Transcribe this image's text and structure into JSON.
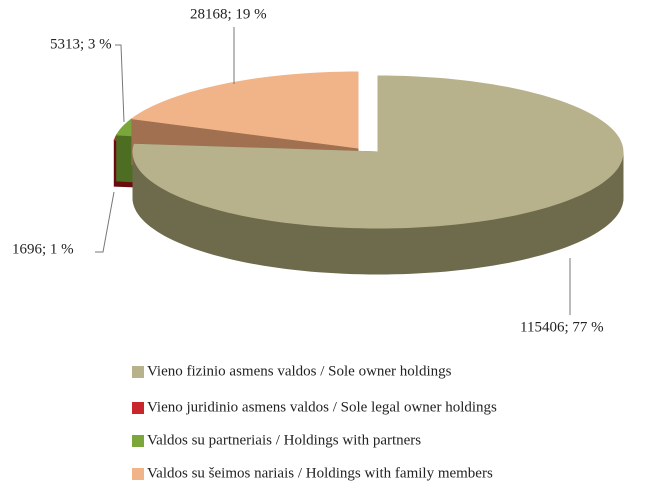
{
  "chart_data": {
    "type": "pie3d",
    "categories": [
      "Vieno fizinio asmens valdos / Sole owner holdings",
      "Vieno juridinio asmens valdos / Sole legal owner holdings",
      "Valdos su partneriais / Holdings with partners",
      "Valdos su šeimos nariais / Holdings with family members"
    ],
    "values": [
      115406,
      1696,
      5313,
      28168
    ],
    "value_labels": [
      "115406; 77 %",
      "1696; 1 %",
      "5313; 3 %",
      "28168; 19 %"
    ],
    "colors": [
      "#b7b28c",
      "#c8262b",
      "#7aa63c",
      "#f0b488"
    ],
    "side_colors": [
      "#6e6b4c",
      "#6a0b10",
      "#4d6e22",
      "#a07050"
    ]
  }
}
